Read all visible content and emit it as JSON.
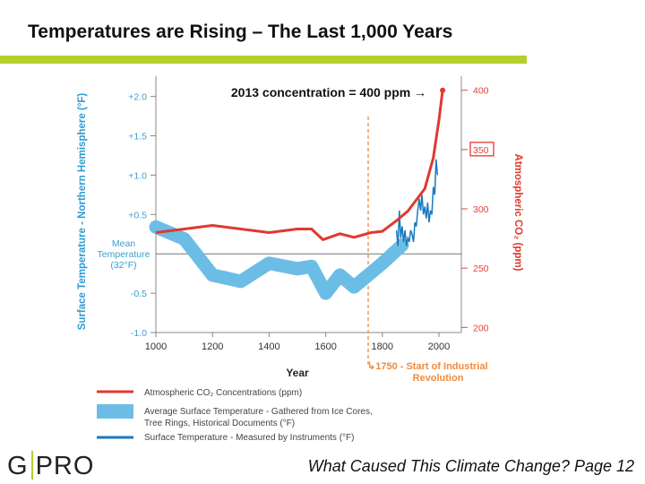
{
  "slide": {
    "title": "Temperatures are Rising – The Last 1,000 Years",
    "logo_left": "G",
    "logo_right": "PRO",
    "footer": "What Caused This Climate Change? Page 12"
  },
  "colors": {
    "accent_bar": "#b5cf2d",
    "co2": "#e0392e",
    "proxy": "#6cbde6",
    "instrument": "#1a78bf",
    "axis_left": "#3a9fd0",
    "industrial": "#f08a3c"
  },
  "chart_data": {
    "type": "line",
    "xlabel": "Year",
    "ylabel_left": "Surface Temperature - Northern Hemisphere (°F)",
    "ylabel_right": "Atmospheric CO₂ (ppm)",
    "xlim": [
      1000,
      2050
    ],
    "ylim_left": [
      -1.0,
      2.0
    ],
    "ylim_right": [
      200,
      400
    ],
    "x_ticks": [
      "1000",
      "1200",
      "1400",
      "1600",
      "1800",
      "2000"
    ],
    "y_ticks_left": [
      "+2.0",
      "+1.5",
      "+1.0",
      "+0.5",
      "-0.5",
      "-1.0"
    ],
    "y_tick_values_left": [
      2.0,
      1.5,
      1.0,
      0.5,
      -0.5,
      -1.0
    ],
    "y_ticks_right": [
      "400",
      "350",
      "300",
      "250",
      "200"
    ],
    "y_tick_values_right": [
      400,
      350,
      300,
      250,
      200
    ],
    "mean_label": [
      "Mean",
      "Temperature",
      "(32°F)"
    ],
    "annotations": {
      "concentration": "2013 concentration = 400 ppm →",
      "industrial_line1": "↳1750 - Start of Industrial",
      "industrial_line2": "Revolution",
      "industrial_year": 1750,
      "boxed_tick": "350"
    },
    "series": [
      {
        "name": "Atmospheric CO₂ Concentrations (ppm)",
        "axis": "right",
        "color": "#e0392e",
        "x": [
          1000,
          1200,
          1400,
          1500,
          1550,
          1590,
          1650,
          1700,
          1760,
          1800,
          1850,
          1890,
          1950,
          1980,
          2000,
          2013
        ],
        "y": [
          280,
          286,
          280,
          283,
          283,
          274,
          279,
          276,
          280,
          281,
          290,
          298,
          317,
          343,
          375,
          400
        ]
      },
      {
        "name": "Average Surface Temperature - Gathered from Ice Cores, Tree Rings, Historical Documents (°F)",
        "axis": "left",
        "color": "#6cbde6",
        "x": [
          1000,
          1100,
          1200,
          1300,
          1400,
          1500,
          1550,
          1600,
          1650,
          1700,
          1800,
          1870
        ],
        "y": [
          0.34,
          0.19,
          -0.27,
          -0.35,
          -0.12,
          -0.19,
          -0.16,
          -0.5,
          -0.27,
          -0.42,
          -0.12,
          0.11
        ]
      },
      {
        "name": "Surface Temperature - Measured by Instruments  (°F)",
        "axis": "left",
        "color": "#1a78bf",
        "x": [
          1850,
          1855,
          1860,
          1865,
          1870,
          1875,
          1880,
          1885,
          1890,
          1895,
          1900,
          1905,
          1910,
          1915,
          1920,
          1925,
          1930,
          1935,
          1940,
          1945,
          1950,
          1955,
          1960,
          1965,
          1970,
          1975,
          1980,
          1985,
          1990,
          1995
        ],
        "y": [
          0.3,
          0.1,
          0.55,
          0.2,
          0.35,
          0.15,
          0.3,
          0.1,
          0.2,
          0.15,
          0.3,
          0.25,
          0.15,
          0.4,
          0.35,
          0.55,
          0.7,
          0.55,
          0.75,
          0.5,
          0.6,
          0.45,
          0.65,
          0.4,
          0.55,
          0.5,
          0.85,
          0.75,
          1.2,
          1.0
        ]
      }
    ],
    "legend": {
      "placement": "bottom-left",
      "items": [
        "Atmospheric CO₂ Concentrations (ppm)",
        "Average Surface Temperature - Gathered from Ice Cores,",
        "Tree Rings, Historical Documents (°F)",
        "Surface Temperature - Measured by Instruments  (°F)"
      ]
    }
  }
}
